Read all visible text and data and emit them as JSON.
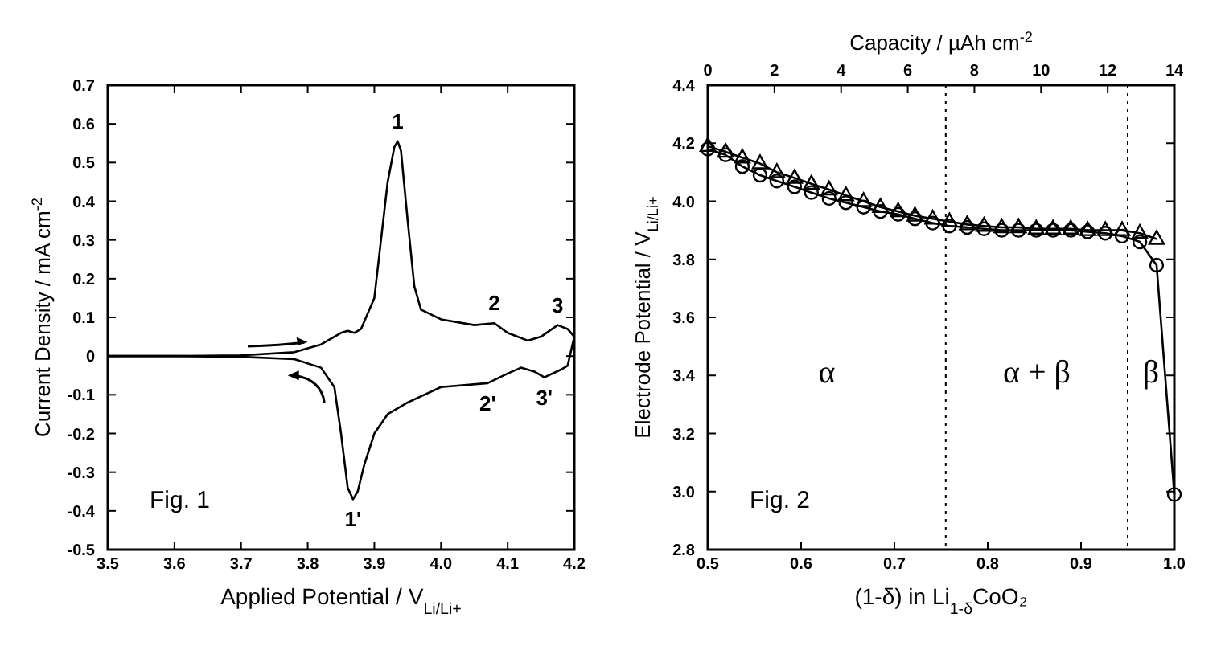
{
  "chart_data": [
    {
      "type": "line",
      "xlabel": "Applied Potential / V$_{Li/Li+}$",
      "ylabel": "Current Density / mA cm$^{-2}$",
      "xlim": [
        3.5,
        4.2
      ],
      "ylim": [
        -0.5,
        0.7
      ],
      "xticks": [
        3.5,
        3.6,
        3.7,
        3.8,
        3.9,
        {
          "value": 4,
          "label": "4.0"
        },
        4.1,
        4.2
      ],
      "yticks": [
        -0.5,
        -0.4,
        -0.3,
        -0.2,
        -0.1,
        0,
        0.1,
        0.2,
        0.3,
        0.4,
        0.5,
        0.6,
        0.7
      ],
      "marker": "none",
      "line_style": "solid",
      "grid": false,
      "series": [
        {
          "color": "#000000",
          "x": [
            3.5,
            3.6,
            3.7,
            3.78,
            3.82,
            3.85,
            3.86,
            3.87,
            3.88,
            3.9,
            3.91,
            3.92,
            3.93,
            3.935,
            3.94,
            3.95,
            3.96,
            3.97,
            4.0,
            4.05,
            4.08,
            4.1,
            4.13,
            4.15,
            4.175,
            4.19,
            4.2
          ],
          "values": [
            0,
            0,
            0.002,
            0.01,
            0.03,
            0.06,
            0.065,
            0.06,
            0.07,
            0.15,
            0.3,
            0.45,
            0.54,
            0.555,
            0.53,
            0.35,
            0.18,
            0.12,
            0.095,
            0.08,
            0.085,
            0.06,
            0.04,
            0.05,
            0.08,
            0.07,
            0.05
          ]
        },
        {
          "color": "#000000",
          "x": [
            4.2,
            4.19,
            4.18,
            4.155,
            4.14,
            4.12,
            4.1,
            4.07,
            4.0,
            3.95,
            3.92,
            3.9,
            3.885,
            3.875,
            3.868,
            3.86,
            3.85,
            3.84,
            3.82,
            3.78,
            3.7,
            3.6,
            3.5
          ],
          "values": [
            0.05,
            -0.025,
            -0.035,
            -0.055,
            -0.04,
            -0.03,
            -0.045,
            -0.07,
            -0.08,
            -0.12,
            -0.15,
            -0.2,
            -0.28,
            -0.35,
            -0.37,
            -0.34,
            -0.2,
            -0.08,
            -0.03,
            -0.008,
            -0.002,
            0,
            0
          ]
        }
      ],
      "annotations": [
        "Fig. 1",
        {
          "text": "1",
          "x": 3.935,
          "y": 0.555
        },
        {
          "text": "2",
          "x": 4.08,
          "y": 0.085
        },
        {
          "text": "3",
          "x": 4.175,
          "y": 0.08
        },
        {
          "text": "1'",
          "x": 3.868,
          "y": -0.37
        },
        {
          "text": "2'",
          "x": 4.07,
          "y": -0.07
        },
        {
          "text": "3'",
          "x": 4.155,
          "y": -0.055
        }
      ]
    },
    {
      "type": "line",
      "xlabel": "(1-δ) in Li$_{1-δ}$CoO₂",
      "ylabel": "Electrode Potential / V$_{Li/Li+}$",
      "x2label": "Capacity / µAh cm$^{-2}$",
      "xlim": [
        0.5,
        1.0
      ],
      "ylim": [
        2.8,
        4.4
      ],
      "x2lim": [
        0,
        14
      ],
      "xticks": [
        0.5,
        0.6,
        0.7,
        0.8,
        0.9,
        {
          "value": 1,
          "label": "1.0"
        }
      ],
      "yticks": [
        2.8,
        {
          "value": 3,
          "label": "3.0"
        },
        3.2,
        3.4,
        3.6,
        3.8,
        {
          "value": 4,
          "label": "4.0"
        },
        4.2,
        4.4
      ],
      "x2ticks": [
        0,
        2,
        4,
        6,
        8,
        10,
        12,
        14
      ],
      "grid": false,
      "line_style": "solid",
      "series": [
        {
          "color": "#000000",
          "marker": "circle",
          "x": [
            0.5,
            0.519,
            0.537,
            0.556,
            0.574,
            0.593,
            0.611,
            0.63,
            0.648,
            0.667,
            0.685,
            0.704,
            0.722,
            0.741,
            0.759,
            0.778,
            0.796,
            0.815,
            0.833,
            0.852,
            0.87,
            0.889,
            0.907,
            0.926,
            0.944,
            0.963,
            0.981,
            1.0
          ],
          "values": [
            4.18,
            4.16,
            4.12,
            4.09,
            4.07,
            4.05,
            4.03,
            4.01,
            3.995,
            3.98,
            3.965,
            3.955,
            3.94,
            3.925,
            3.915,
            3.91,
            3.905,
            3.9,
            3.9,
            3.9,
            3.9,
            3.9,
            3.895,
            3.89,
            3.88,
            3.86,
            3.78,
            2.99
          ]
        },
        {
          "color": "#000000",
          "marker": "triangle",
          "x": [
            0.5,
            0.519,
            0.537,
            0.556,
            0.574,
            0.593,
            0.611,
            0.63,
            0.648,
            0.667,
            0.685,
            0.704,
            0.722,
            0.741,
            0.759,
            0.778,
            0.796,
            0.815,
            0.833,
            0.852,
            0.87,
            0.889,
            0.907,
            0.926,
            0.944,
            0.963,
            0.981
          ],
          "values": [
            4.19,
            4.17,
            4.15,
            4.13,
            4.1,
            4.08,
            4.06,
            4.04,
            4.02,
            4.0,
            3.98,
            3.965,
            3.95,
            3.94,
            3.93,
            3.92,
            3.915,
            3.91,
            3.91,
            3.905,
            3.905,
            3.905,
            3.9,
            3.9,
            3.9,
            3.89,
            3.87
          ]
        }
      ],
      "ref_lines": [
        {
          "axis": "x",
          "value": 0.755,
          "color": "#000000",
          "line_style": "dotted"
        },
        {
          "axis": "x",
          "value": 0.95,
          "color": "#000000",
          "line_style": "dotted"
        }
      ],
      "annotations": [
        "Fig. 2",
        "α",
        "α + β",
        "β"
      ]
    }
  ]
}
